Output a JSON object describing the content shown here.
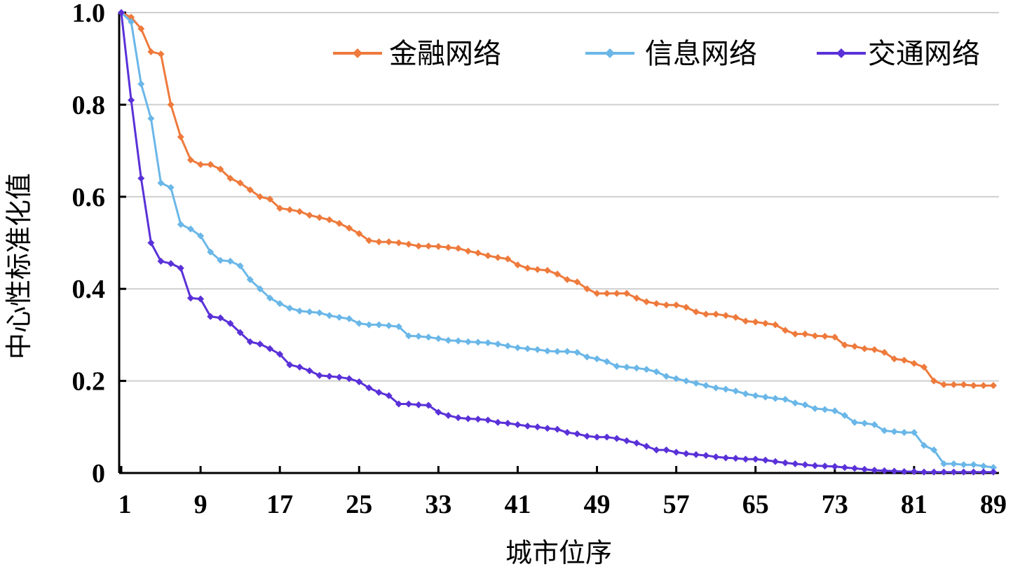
{
  "chart_data": {
    "type": "line",
    "xlabel": "城市位序",
    "ylabel": "中心性标准化值",
    "xlim": [
      1,
      89
    ],
    "ylim": [
      0,
      1.0
    ],
    "grid": "horizontal",
    "legend_position": "top-right",
    "x_ticks": [
      1,
      9,
      17,
      25,
      33,
      41,
      49,
      57,
      65,
      73,
      81,
      89
    ],
    "y_ticks": [
      {
        "value": 0,
        "label": "0"
      },
      {
        "value": 0.2,
        "label": "0.2"
      },
      {
        "value": 0.4,
        "label": "0.4"
      },
      {
        "value": 0.6,
        "label": "0.6"
      },
      {
        "value": 0.8,
        "label": "0.8"
      },
      {
        "value": 1.0,
        "label": "1.0"
      }
    ],
    "series": [
      {
        "name": "金融网络",
        "color": "#ee7a3c",
        "values": [
          1.0,
          0.99,
          0.965,
          0.915,
          0.91,
          0.8,
          0.73,
          0.68,
          0.67,
          0.67,
          0.66,
          0.64,
          0.63,
          0.615,
          0.6,
          0.595,
          0.575,
          0.572,
          0.568,
          0.56,
          0.555,
          0.55,
          0.542,
          0.532,
          0.52,
          0.505,
          0.502,
          0.502,
          0.5,
          0.497,
          0.493,
          0.493,
          0.492,
          0.49,
          0.488,
          0.482,
          0.478,
          0.472,
          0.468,
          0.465,
          0.452,
          0.445,
          0.442,
          0.44,
          0.432,
          0.42,
          0.415,
          0.4,
          0.39,
          0.39,
          0.39,
          0.39,
          0.38,
          0.372,
          0.368,
          0.365,
          0.365,
          0.36,
          0.35,
          0.345,
          0.345,
          0.342,
          0.338,
          0.33,
          0.328,
          0.325,
          0.322,
          0.31,
          0.302,
          0.302,
          0.298,
          0.297,
          0.295,
          0.278,
          0.275,
          0.27,
          0.268,
          0.262,
          0.248,
          0.245,
          0.238,
          0.23,
          0.2,
          0.192,
          0.192,
          0.192,
          0.19,
          0.19,
          0.19
        ]
      },
      {
        "name": "信息网络",
        "color": "#6ab7e8",
        "values": [
          1.0,
          0.98,
          0.845,
          0.77,
          0.63,
          0.62,
          0.54,
          0.53,
          0.515,
          0.48,
          0.462,
          0.46,
          0.45,
          0.42,
          0.4,
          0.38,
          0.368,
          0.358,
          0.352,
          0.35,
          0.348,
          0.342,
          0.338,
          0.335,
          0.325,
          0.322,
          0.322,
          0.32,
          0.318,
          0.298,
          0.297,
          0.295,
          0.292,
          0.288,
          0.287,
          0.285,
          0.284,
          0.283,
          0.28,
          0.276,
          0.272,
          0.27,
          0.268,
          0.265,
          0.264,
          0.264,
          0.262,
          0.252,
          0.248,
          0.242,
          0.232,
          0.23,
          0.228,
          0.225,
          0.22,
          0.21,
          0.205,
          0.2,
          0.195,
          0.19,
          0.185,
          0.182,
          0.178,
          0.172,
          0.168,
          0.165,
          0.162,
          0.16,
          0.152,
          0.148,
          0.14,
          0.138,
          0.135,
          0.125,
          0.11,
          0.108,
          0.105,
          0.092,
          0.09,
          0.088,
          0.088,
          0.06,
          0.05,
          0.02,
          0.02,
          0.018,
          0.018,
          0.015,
          0.012
        ]
      },
      {
        "name": "交通网络",
        "color": "#5a31d8",
        "values": [
          1.0,
          0.81,
          0.64,
          0.5,
          0.46,
          0.455,
          0.445,
          0.38,
          0.378,
          0.34,
          0.337,
          0.325,
          0.305,
          0.285,
          0.28,
          0.27,
          0.258,
          0.235,
          0.23,
          0.222,
          0.212,
          0.21,
          0.208,
          0.205,
          0.198,
          0.185,
          0.175,
          0.168,
          0.15,
          0.15,
          0.148,
          0.147,
          0.132,
          0.125,
          0.12,
          0.118,
          0.117,
          0.115,
          0.11,
          0.108,
          0.105,
          0.102,
          0.1,
          0.097,
          0.095,
          0.088,
          0.085,
          0.08,
          0.078,
          0.078,
          0.075,
          0.07,
          0.065,
          0.058,
          0.05,
          0.05,
          0.045,
          0.042,
          0.04,
          0.038,
          0.035,
          0.033,
          0.032,
          0.03,
          0.03,
          0.028,
          0.025,
          0.022,
          0.02,
          0.018,
          0.016,
          0.015,
          0.014,
          0.012,
          0.01,
          0.008,
          0.006,
          0.005,
          0.004,
          0.003,
          0.003,
          0.002,
          0.002,
          0.002,
          0.002,
          0.002,
          0.002,
          0.002,
          0.002
        ]
      }
    ]
  }
}
